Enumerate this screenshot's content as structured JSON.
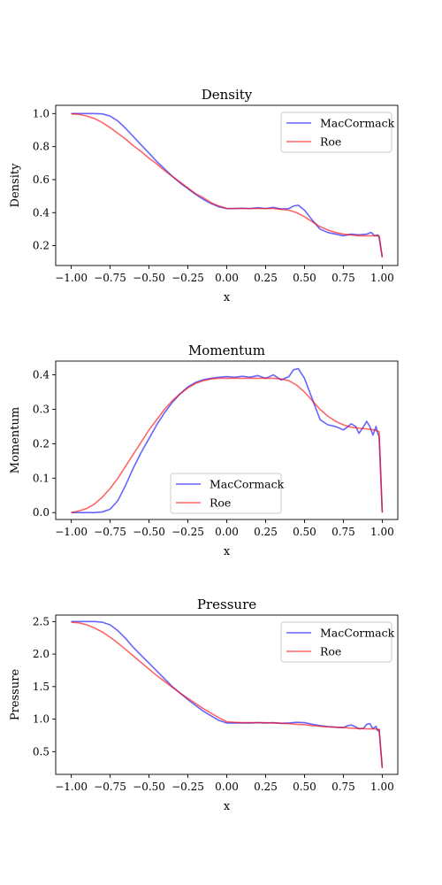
{
  "colors": {
    "maccormack": "#0000ff",
    "roe": "#ff0000",
    "axis": "#000000",
    "background": "#ffffff"
  },
  "chart_data": [
    {
      "type": "line",
      "title": "Density",
      "xlabel": "x",
      "ylabel": "Density",
      "xlim": [
        -1.1,
        1.1
      ],
      "ylim": [
        0.08,
        1.05
      ],
      "xticks": [
        -1.0,
        -0.75,
        -0.5,
        -0.25,
        0.0,
        0.25,
        0.5,
        0.75,
        1.0
      ],
      "xtick_labels": [
        "−1.00",
        "−0.75",
        "−0.50",
        "−0.25",
        "0.00",
        "0.25",
        "0.50",
        "0.75",
        "1.00"
      ],
      "yticks": [
        0.2,
        0.4,
        0.6,
        0.8,
        1.0
      ],
      "ytick_labels": [
        "0.2",
        "0.4",
        "0.6",
        "0.8",
        "1.0"
      ],
      "grid": false,
      "legend_position": "upper right",
      "series": [
        {
          "name": "MacCormack",
          "color": "#0000ff",
          "x": [
            -1.0,
            -0.95,
            -0.9,
            -0.85,
            -0.8,
            -0.75,
            -0.7,
            -0.65,
            -0.6,
            -0.55,
            -0.5,
            -0.45,
            -0.4,
            -0.35,
            -0.3,
            -0.25,
            -0.2,
            -0.15,
            -0.1,
            -0.05,
            0.0,
            0.05,
            0.1,
            0.15,
            0.2,
            0.25,
            0.3,
            0.35,
            0.4,
            0.43,
            0.46,
            0.5,
            0.55,
            0.6,
            0.65,
            0.7,
            0.75,
            0.8,
            0.85,
            0.9,
            0.93,
            0.95,
            0.97,
            0.98,
            1.0
          ],
          "y": [
            1.0,
            1.0,
            1.0,
            1.0,
            0.998,
            0.985,
            0.955,
            0.91,
            0.86,
            0.81,
            0.76,
            0.71,
            0.665,
            0.62,
            0.58,
            0.545,
            0.51,
            0.48,
            0.455,
            0.435,
            0.425,
            0.425,
            0.427,
            0.425,
            0.43,
            0.425,
            0.432,
            0.422,
            0.425,
            0.44,
            0.445,
            0.415,
            0.355,
            0.3,
            0.28,
            0.27,
            0.26,
            0.27,
            0.265,
            0.27,
            0.28,
            0.26,
            0.265,
            0.25,
            0.13
          ]
        },
        {
          "name": "Roe",
          "color": "#ff0000",
          "x": [
            -1.0,
            -0.95,
            -0.9,
            -0.85,
            -0.8,
            -0.75,
            -0.7,
            -0.65,
            -0.6,
            -0.55,
            -0.5,
            -0.45,
            -0.4,
            -0.35,
            -0.3,
            -0.25,
            -0.2,
            -0.15,
            -0.1,
            -0.05,
            0.0,
            0.05,
            0.1,
            0.15,
            0.2,
            0.25,
            0.3,
            0.35,
            0.4,
            0.45,
            0.5,
            0.55,
            0.6,
            0.65,
            0.7,
            0.75,
            0.8,
            0.85,
            0.9,
            0.95,
            0.98,
            1.0
          ],
          "y": [
            0.998,
            0.995,
            0.985,
            0.97,
            0.945,
            0.915,
            0.88,
            0.845,
            0.805,
            0.77,
            0.73,
            0.695,
            0.655,
            0.62,
            0.585,
            0.55,
            0.515,
            0.49,
            0.46,
            0.44,
            0.425,
            0.425,
            0.425,
            0.425,
            0.425,
            0.425,
            0.425,
            0.42,
            0.415,
            0.4,
            0.375,
            0.345,
            0.315,
            0.295,
            0.28,
            0.27,
            0.265,
            0.26,
            0.26,
            0.26,
            0.26,
            0.13
          ]
        }
      ]
    },
    {
      "type": "line",
      "title": "Momentum",
      "xlabel": "x",
      "ylabel": "Momentum",
      "xlim": [
        -1.1,
        1.1
      ],
      "ylim": [
        -0.02,
        0.44
      ],
      "xticks": [
        -1.0,
        -0.75,
        -0.5,
        -0.25,
        0.0,
        0.25,
        0.5,
        0.75,
        1.0
      ],
      "xtick_labels": [
        "−1.00",
        "−0.75",
        "−0.50",
        "−0.25",
        "0.00",
        "0.25",
        "0.50",
        "0.75",
        "1.00"
      ],
      "yticks": [
        0.0,
        0.1,
        0.2,
        0.3,
        0.4
      ],
      "ytick_labels": [
        "0.0",
        "0.1",
        "0.2",
        "0.3",
        "0.4"
      ],
      "grid": false,
      "legend_position": "lower center",
      "series": [
        {
          "name": "MacCormack",
          "color": "#0000ff",
          "x": [
            -1.0,
            -0.95,
            -0.9,
            -0.85,
            -0.8,
            -0.75,
            -0.7,
            -0.65,
            -0.6,
            -0.55,
            -0.5,
            -0.45,
            -0.4,
            -0.35,
            -0.3,
            -0.25,
            -0.2,
            -0.15,
            -0.1,
            -0.05,
            0.0,
            0.05,
            0.1,
            0.15,
            0.2,
            0.25,
            0.3,
            0.35,
            0.4,
            0.43,
            0.46,
            0.5,
            0.55,
            0.6,
            0.65,
            0.7,
            0.75,
            0.78,
            0.8,
            0.83,
            0.85,
            0.88,
            0.9,
            0.92,
            0.94,
            0.96,
            0.97,
            0.98,
            1.0
          ],
          "y": [
            0.0,
            0.0,
            0.0,
            0.0,
            0.002,
            0.01,
            0.035,
            0.08,
            0.13,
            0.175,
            0.215,
            0.255,
            0.29,
            0.32,
            0.345,
            0.365,
            0.378,
            0.386,
            0.39,
            0.393,
            0.395,
            0.393,
            0.396,
            0.393,
            0.398,
            0.39,
            0.4,
            0.385,
            0.395,
            0.415,
            0.418,
            0.39,
            0.33,
            0.27,
            0.255,
            0.25,
            0.24,
            0.25,
            0.258,
            0.25,
            0.23,
            0.25,
            0.265,
            0.25,
            0.225,
            0.25,
            0.232,
            0.22,
            0.0
          ]
        },
        {
          "name": "Roe",
          "color": "#ff0000",
          "x": [
            -1.0,
            -0.95,
            -0.9,
            -0.85,
            -0.8,
            -0.75,
            -0.7,
            -0.65,
            -0.6,
            -0.55,
            -0.5,
            -0.45,
            -0.4,
            -0.35,
            -0.3,
            -0.25,
            -0.2,
            -0.15,
            -0.1,
            -0.05,
            0.0,
            0.05,
            0.1,
            0.15,
            0.2,
            0.25,
            0.3,
            0.35,
            0.4,
            0.45,
            0.5,
            0.55,
            0.6,
            0.65,
            0.7,
            0.75,
            0.8,
            0.85,
            0.9,
            0.95,
            0.98,
            1.0
          ],
          "y": [
            0.0,
            0.005,
            0.012,
            0.025,
            0.045,
            0.07,
            0.1,
            0.135,
            0.17,
            0.205,
            0.24,
            0.27,
            0.3,
            0.325,
            0.345,
            0.362,
            0.375,
            0.383,
            0.388,
            0.39,
            0.39,
            0.39,
            0.39,
            0.39,
            0.39,
            0.39,
            0.39,
            0.388,
            0.383,
            0.37,
            0.35,
            0.325,
            0.3,
            0.28,
            0.265,
            0.255,
            0.248,
            0.245,
            0.243,
            0.24,
            0.235,
            0.0
          ]
        }
      ]
    },
    {
      "type": "line",
      "title": "Pressure",
      "xlabel": "x",
      "ylabel": "Pressure",
      "xlim": [
        -1.1,
        1.1
      ],
      "ylim": [
        0.15,
        2.6
      ],
      "xticks": [
        -1.0,
        -0.75,
        -0.5,
        -0.25,
        0.0,
        0.25,
        0.5,
        0.75,
        1.0
      ],
      "xtick_labels": [
        "−1.00",
        "−0.75",
        "−0.50",
        "−0.25",
        "0.00",
        "0.25",
        "0.50",
        "0.75",
        "1.00"
      ],
      "yticks": [
        0.5,
        1.0,
        1.5,
        2.0,
        2.5
      ],
      "ytick_labels": [
        "0.5",
        "1.0",
        "1.5",
        "2.0",
        "2.5"
      ],
      "grid": false,
      "legend_position": "upper right",
      "series": [
        {
          "name": "MacCormack",
          "color": "#0000ff",
          "x": [
            -1.0,
            -0.95,
            -0.9,
            -0.85,
            -0.8,
            -0.75,
            -0.7,
            -0.65,
            -0.6,
            -0.55,
            -0.5,
            -0.45,
            -0.4,
            -0.35,
            -0.3,
            -0.25,
            -0.2,
            -0.15,
            -0.1,
            -0.05,
            0.0,
            0.05,
            0.1,
            0.15,
            0.2,
            0.25,
            0.3,
            0.35,
            0.4,
            0.45,
            0.5,
            0.55,
            0.6,
            0.65,
            0.7,
            0.75,
            0.78,
            0.8,
            0.83,
            0.85,
            0.88,
            0.9,
            0.92,
            0.94,
            0.96,
            0.97,
            0.98,
            1.0
          ],
          "y": [
            2.5,
            2.5,
            2.5,
            2.5,
            2.49,
            2.45,
            2.36,
            2.24,
            2.1,
            1.98,
            1.86,
            1.74,
            1.62,
            1.5,
            1.4,
            1.3,
            1.21,
            1.12,
            1.05,
            0.98,
            0.94,
            0.94,
            0.94,
            0.94,
            0.945,
            0.94,
            0.945,
            0.935,
            0.94,
            0.95,
            0.945,
            0.92,
            0.9,
            0.885,
            0.875,
            0.87,
            0.9,
            0.91,
            0.88,
            0.85,
            0.86,
            0.92,
            0.93,
            0.85,
            0.89,
            0.82,
            0.84,
            0.25
          ]
        },
        {
          "name": "Roe",
          "color": "#ff0000",
          "x": [
            -1.0,
            -0.95,
            -0.9,
            -0.85,
            -0.8,
            -0.75,
            -0.7,
            -0.65,
            -0.6,
            -0.55,
            -0.5,
            -0.45,
            -0.4,
            -0.35,
            -0.3,
            -0.25,
            -0.2,
            -0.15,
            -0.1,
            -0.05,
            0.0,
            0.05,
            0.1,
            0.15,
            0.2,
            0.25,
            0.3,
            0.35,
            0.4,
            0.45,
            0.5,
            0.55,
            0.6,
            0.65,
            0.7,
            0.75,
            0.8,
            0.85,
            0.9,
            0.95,
            0.98,
            1.0
          ],
          "y": [
            2.49,
            2.48,
            2.45,
            2.4,
            2.34,
            2.26,
            2.17,
            2.07,
            1.97,
            1.87,
            1.77,
            1.67,
            1.58,
            1.49,
            1.4,
            1.32,
            1.24,
            1.16,
            1.09,
            1.02,
            0.96,
            0.95,
            0.945,
            0.945,
            0.945,
            0.945,
            0.94,
            0.935,
            0.93,
            0.92,
            0.915,
            0.9,
            0.89,
            0.88,
            0.875,
            0.87,
            0.86,
            0.855,
            0.85,
            0.85,
            0.84,
            0.25
          ]
        }
      ]
    }
  ]
}
